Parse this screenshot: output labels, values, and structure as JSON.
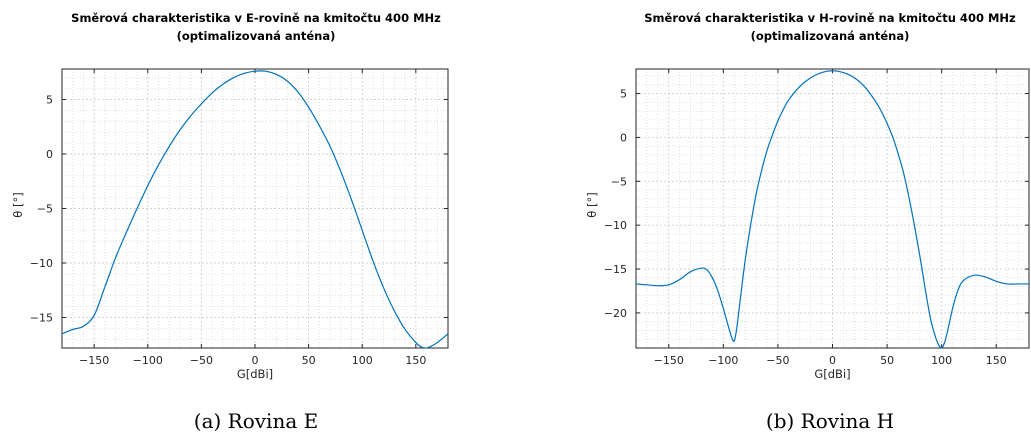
{
  "chart_data": [
    {
      "type": "line",
      "title": "Směrová charakteristika v E-rovině na kmitočtu 400 MHz",
      "subtitle": "(optimalizovaná anténa)",
      "xlabel": "G[dBi]",
      "ylabel": "θ [°]",
      "caption": "(a) Rovina E",
      "xlim": [
        -180,
        180
      ],
      "ylim": [
        -17.8,
        7.8
      ],
      "xticks": [
        -150,
        -100,
        -50,
        0,
        50,
        100,
        150
      ],
      "yticks": [
        5,
        0,
        -5,
        -10,
        -15
      ],
      "grid": "major+minor",
      "line_color": "#0072bd",
      "series": [
        {
          "x": [
            -180,
            -170,
            -160,
            -150,
            -140,
            -130,
            -120,
            -110,
            -100,
            -90,
            -80,
            -70,
            -60,
            -50,
            -40,
            -30,
            -20,
            -10,
            0,
            10,
            20,
            30,
            40,
            50,
            60,
            70,
            80,
            90,
            100,
            110,
            120,
            130,
            140,
            150,
            155,
            160,
            165,
            170,
            180
          ],
          "y": [
            -16.5,
            -16.1,
            -15.8,
            -14.8,
            -12.2,
            -9.5,
            -7.2,
            -5.0,
            -2.9,
            -1.0,
            0.7,
            2.2,
            3.5,
            4.6,
            5.6,
            6.4,
            7.0,
            7.4,
            7.6,
            7.6,
            7.3,
            6.7,
            5.7,
            4.3,
            2.6,
            0.7,
            -1.6,
            -4.2,
            -7.0,
            -9.8,
            -12.3,
            -14.4,
            -16.1,
            -17.3,
            -17.7,
            -17.8,
            -17.6,
            -17.3,
            -16.5
          ]
        }
      ]
    },
    {
      "type": "line",
      "title": "Směrová charakteristika v H-rovině na kmitočtu 400 MHz",
      "subtitle": "(optimalizovaná anténa)",
      "xlabel": "G[dBi]",
      "ylabel": "θ [°]",
      "caption": "(b) Rovina H",
      "xlim": [
        -180,
        180
      ],
      "ylim": [
        -24,
        7.8
      ],
      "xticks": [
        -150,
        -100,
        -50,
        0,
        50,
        100,
        150
      ],
      "yticks": [
        5,
        0,
        -5,
        -10,
        -15,
        -20
      ],
      "grid": "major+minor",
      "line_color": "#0072bd",
      "series": [
        {
          "x": [
            -180,
            -170,
            -160,
            -150,
            -140,
            -130,
            -120,
            -115,
            -110,
            -105,
            -100,
            -95,
            -92,
            -90,
            -88,
            -85,
            -80,
            -75,
            -70,
            -65,
            -60,
            -55,
            -50,
            -45,
            -40,
            -30,
            -20,
            -10,
            0,
            10,
            20,
            30,
            40,
            45,
            50,
            55,
            60,
            65,
            70,
            75,
            80,
            85,
            90,
            95,
            98,
            100,
            102,
            105,
            110,
            115,
            120,
            130,
            140,
            150,
            160,
            170,
            180
          ],
          "y": [
            -16.7,
            -16.8,
            -16.9,
            -16.8,
            -16.2,
            -15.3,
            -14.9,
            -15.1,
            -16.0,
            -17.5,
            -19.5,
            -21.7,
            -22.9,
            -23.2,
            -22.0,
            -19.0,
            -14.0,
            -10.0,
            -6.5,
            -3.8,
            -1.5,
            0.3,
            1.9,
            3.2,
            4.3,
            5.8,
            6.8,
            7.4,
            7.6,
            7.4,
            6.8,
            5.7,
            4.0,
            2.9,
            1.6,
            0.1,
            -1.8,
            -4.0,
            -6.8,
            -10.0,
            -13.5,
            -17.3,
            -20.8,
            -23.0,
            -23.8,
            -24.0,
            -23.6,
            -22.3,
            -19.5,
            -17.4,
            -16.3,
            -15.7,
            -15.9,
            -16.4,
            -16.7,
            -16.7,
            -16.7
          ]
        }
      ]
    }
  ]
}
